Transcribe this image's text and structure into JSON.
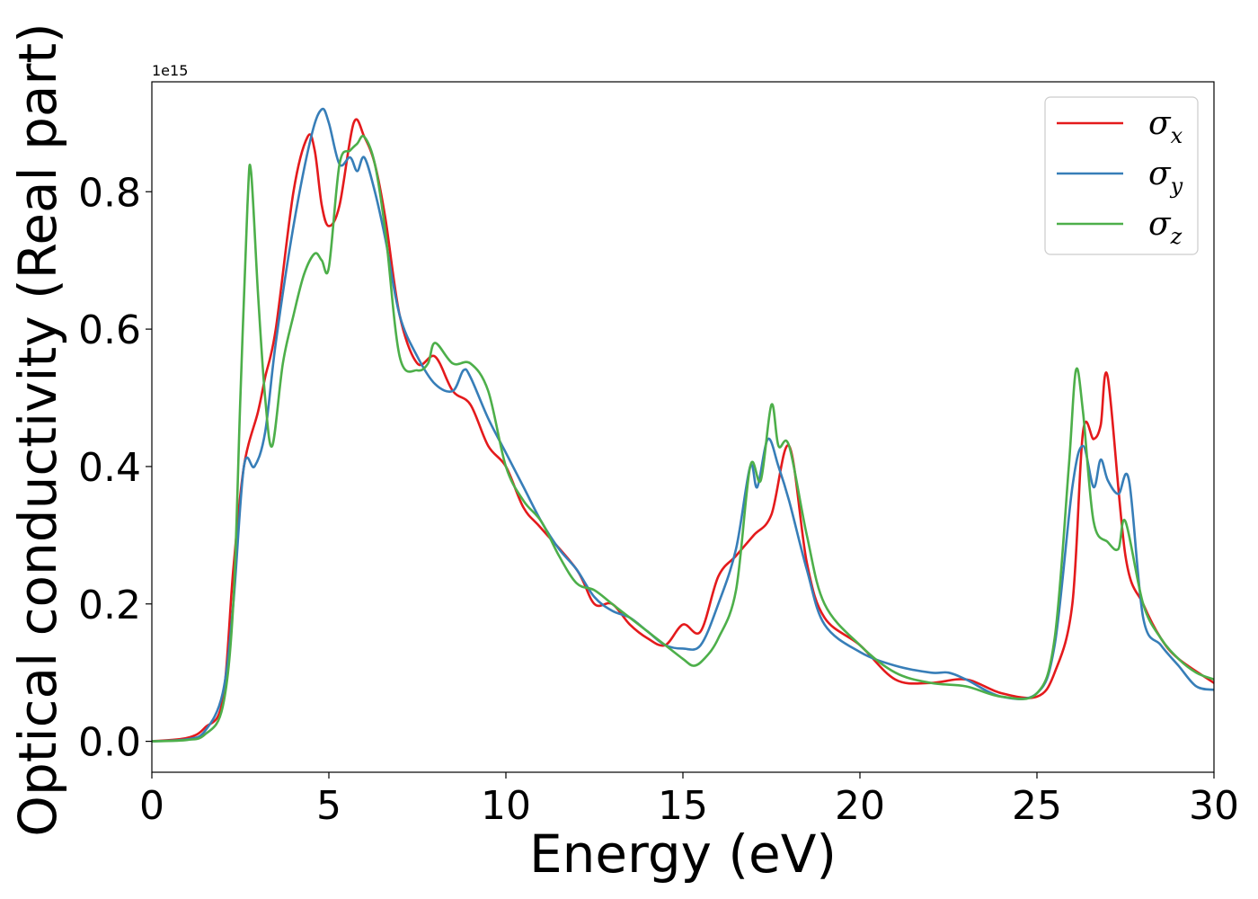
{
  "chart_data": {
    "type": "line",
    "title": "",
    "xlabel": "Energy (eV)",
    "ylabel": "Optical conductivity (Real part)",
    "offset_text": "1e15",
    "xlim": [
      0,
      30
    ],
    "ylim": [
      -0.045,
      0.96
    ],
    "xticks": [
      0,
      5,
      10,
      15,
      20,
      25,
      30
    ],
    "xtick_labels": [
      "0",
      "5",
      "10",
      "15",
      "20",
      "25",
      "30"
    ],
    "yticks": [
      0.0,
      0.2,
      0.4,
      0.6,
      0.8
    ],
    "ytick_labels": [
      "0.0",
      "0.2",
      "0.4",
      "0.6",
      "0.8"
    ],
    "grid": false,
    "legend_position": "top-right",
    "series": [
      {
        "name": "σx",
        "symbol": "σ",
        "subscript": "x",
        "color": "#e41a1c",
        "x": [
          0,
          1,
          1.5,
          2,
          2.3,
          2.6,
          3,
          3.2,
          3.5,
          4,
          4.4,
          4.6,
          4.8,
          5,
          5.3,
          5.7,
          6,
          6.3,
          6.6,
          7,
          7.5,
          8,
          8.5,
          9,
          9.5,
          10,
          10.5,
          11,
          12,
          12.5,
          13,
          13.5,
          14,
          14.5,
          15,
          15.5,
          16,
          16.5,
          17,
          17.5,
          18,
          18.5,
          19,
          20,
          21,
          22,
          23,
          24,
          25,
          25.5,
          26,
          26.3,
          26.6,
          26.8,
          27,
          27.5,
          28,
          28.5,
          29,
          30
        ],
        "y": [
          0,
          0.005,
          0.02,
          0.06,
          0.25,
          0.4,
          0.48,
          0.53,
          0.6,
          0.8,
          0.88,
          0.86,
          0.78,
          0.75,
          0.78,
          0.9,
          0.88,
          0.84,
          0.76,
          0.62,
          0.55,
          0.56,
          0.51,
          0.49,
          0.43,
          0.4,
          0.34,
          0.31,
          0.25,
          0.2,
          0.2,
          0.17,
          0.15,
          0.14,
          0.17,
          0.16,
          0.24,
          0.27,
          0.3,
          0.33,
          0.43,
          0.26,
          0.18,
          0.14,
          0.09,
          0.085,
          0.09,
          0.07,
          0.065,
          0.1,
          0.2,
          0.45,
          0.44,
          0.46,
          0.53,
          0.27,
          0.2,
          0.15,
          0.12,
          0.085
        ]
      },
      {
        "name": "σy",
        "symbol": "σ",
        "subscript": "y",
        "color": "#377eb8",
        "x": [
          0,
          1,
          1.5,
          2,
          2.3,
          2.6,
          2.9,
          3.2,
          3.5,
          4,
          4.5,
          4.8,
          5,
          5.3,
          5.6,
          5.8,
          6,
          6.3,
          6.6,
          7,
          7.5,
          8,
          8.5,
          8.8,
          9,
          9.5,
          10,
          10.5,
          11,
          11.5,
          12,
          12.5,
          13,
          13.5,
          14,
          14.5,
          15,
          15.5,
          16,
          16.5,
          16.9,
          17.1,
          17.4,
          17.7,
          18,
          18.5,
          19,
          20,
          21,
          22,
          22.5,
          23,
          24,
          25,
          25.5,
          26,
          26.3,
          26.6,
          26.8,
          27,
          27.3,
          27.6,
          28,
          28.5,
          29,
          29.5,
          30
        ],
        "y": [
          0,
          0.003,
          0.015,
          0.07,
          0.2,
          0.4,
          0.4,
          0.45,
          0.58,
          0.75,
          0.88,
          0.92,
          0.9,
          0.84,
          0.85,
          0.83,
          0.85,
          0.8,
          0.73,
          0.62,
          0.56,
          0.52,
          0.51,
          0.54,
          0.53,
          0.47,
          0.42,
          0.37,
          0.32,
          0.28,
          0.25,
          0.21,
          0.19,
          0.18,
          0.16,
          0.14,
          0.135,
          0.14,
          0.2,
          0.28,
          0.4,
          0.37,
          0.44,
          0.4,
          0.35,
          0.25,
          0.17,
          0.13,
          0.11,
          0.1,
          0.1,
          0.09,
          0.065,
          0.07,
          0.14,
          0.37,
          0.43,
          0.37,
          0.41,
          0.38,
          0.36,
          0.38,
          0.18,
          0.14,
          0.11,
          0.08,
          0.075
        ]
      },
      {
        "name": "σz",
        "symbol": "σ",
        "subscript": "z",
        "color": "#4daf4a",
        "x": [
          0,
          1,
          1.5,
          2,
          2.3,
          2.5,
          2.7,
          2.8,
          3,
          3.2,
          3.4,
          3.7,
          4,
          4.3,
          4.6,
          4.8,
          5,
          5.3,
          5.6,
          5.8,
          6,
          6.3,
          6.6,
          7,
          7.5,
          7.8,
          8,
          8.5,
          9,
          9.5,
          10,
          10.5,
          11,
          11.5,
          12,
          12.5,
          13,
          13.5,
          14,
          14.5,
          15,
          15.3,
          15.6,
          16,
          16.5,
          16.9,
          17.2,
          17.5,
          17.7,
          18,
          18.5,
          19,
          20,
          21,
          22,
          23,
          24,
          25,
          25.5,
          25.9,
          26.1,
          26.3,
          26.6,
          27,
          27.3,
          27.5,
          28,
          28.5,
          29,
          29.5,
          30
        ],
        "y": [
          0,
          0.002,
          0.01,
          0.05,
          0.2,
          0.5,
          0.78,
          0.83,
          0.65,
          0.5,
          0.43,
          0.55,
          0.62,
          0.68,
          0.71,
          0.7,
          0.69,
          0.84,
          0.86,
          0.87,
          0.88,
          0.84,
          0.74,
          0.56,
          0.54,
          0.55,
          0.58,
          0.55,
          0.55,
          0.51,
          0.4,
          0.35,
          0.32,
          0.27,
          0.23,
          0.22,
          0.2,
          0.18,
          0.16,
          0.14,
          0.12,
          0.11,
          0.12,
          0.15,
          0.22,
          0.4,
          0.38,
          0.49,
          0.43,
          0.43,
          0.3,
          0.2,
          0.14,
          0.1,
          0.085,
          0.08,
          0.065,
          0.07,
          0.15,
          0.4,
          0.54,
          0.48,
          0.32,
          0.29,
          0.28,
          0.32,
          0.2,
          0.15,
          0.12,
          0.1,
          0.09
        ]
      }
    ]
  }
}
